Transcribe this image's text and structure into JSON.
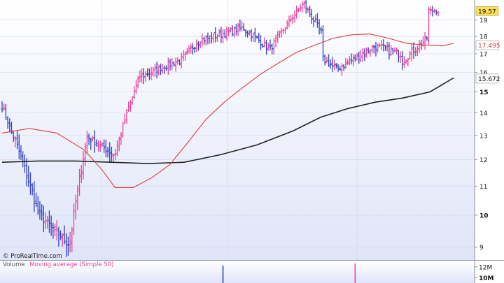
{
  "source_label": "© ProRealTime.com",
  "volume_panel": {
    "label_volume": "Volume",
    "label_ma": "Moving average (Simple 50)",
    "ticks": [
      {
        "label": "12M",
        "value": 12000000,
        "bold": false
      },
      {
        "label": "10M",
        "value": 10000000,
        "bold": true
      }
    ],
    "spike_bars": [
      {
        "index": 0,
        "value": 12200000
      },
      {
        "index": 0,
        "value": 12600000
      }
    ]
  },
  "colors": {
    "up": "#e8409b",
    "down": "#3040c0",
    "ma_short": "#e03c3c",
    "ma_long": "#222222",
    "grid": "#d0d6e6",
    "bg_top": "#ffffff",
    "bg_bottom": "#dfe5f8",
    "badge_price": "#ffe14d",
    "badge_ma_short": "#ffffff",
    "badge_ma_long": "#ffffff"
  },
  "chart_data": {
    "type": "ohlc",
    "scale": "log",
    "ylim": [
      8.75,
      20.2
    ],
    "y_ticks": [
      {
        "label": "9",
        "value": 9,
        "bold": false
      },
      {
        "label": "10",
        "value": 10,
        "bold": true
      },
      {
        "label": "11",
        "value": 11,
        "bold": false
      },
      {
        "label": "12",
        "value": 12,
        "bold": false
      },
      {
        "label": "13",
        "value": 13,
        "bold": false
      },
      {
        "label": "14",
        "value": 14,
        "bold": false
      },
      {
        "label": "15",
        "value": 15,
        "bold": true
      },
      {
        "label": "16",
        "value": 16,
        "bold": false
      },
      {
        "label": "17",
        "value": 17,
        "bold": false
      },
      {
        "label": "18",
        "value": 18,
        "bold": false
      },
      {
        "label": "19",
        "value": 19,
        "bold": false
      }
    ],
    "last_values": {
      "price": "19.57",
      "ma_short": "17.495",
      "ma_long": "15.672"
    },
    "segments": [
      {
        "bars": 20,
        "start": 14.3,
        "end": 10.1,
        "noise": 0.35
      },
      {
        "bars": 16,
        "start": 10.0,
        "end": 9.1,
        "noise": 0.25
      },
      {
        "bars": 10,
        "start": 9.2,
        "end": 12.9,
        "noise": 0.3
      },
      {
        "bars": 14,
        "start": 12.9,
        "end": 12.2,
        "noise": 0.3
      },
      {
        "bars": 14,
        "start": 12.3,
        "end": 15.8,
        "noise": 0.3
      },
      {
        "bars": 20,
        "start": 15.8,
        "end": 16.6,
        "noise": 0.35
      },
      {
        "bars": 12,
        "start": 16.6,
        "end": 17.8,
        "noise": 0.35
      },
      {
        "bars": 22,
        "start": 17.8,
        "end": 18.5,
        "noise": 0.4
      },
      {
        "bars": 14,
        "start": 18.5,
        "end": 17.3,
        "noise": 0.4
      },
      {
        "bars": 18,
        "start": 17.3,
        "end": 20.0,
        "noise": 0.35
      },
      {
        "bars": 10,
        "start": 20.0,
        "end": 18.2,
        "noise": 0.4
      },
      {
        "bars": 8,
        "start": 16.7,
        "end": 16.2,
        "noise": 0.4
      },
      {
        "bars": 20,
        "start": 16.2,
        "end": 17.4,
        "noise": 0.4
      },
      {
        "bars": 14,
        "start": 17.4,
        "end": 17.0,
        "noise": 0.45
      },
      {
        "bars": 14,
        "start": 16.6,
        "end": 17.9,
        "noise": 0.4
      },
      {
        "bars": 6,
        "start": 19.6,
        "end": 19.57,
        "noise": 0.3
      }
    ],
    "ma_short": [
      [
        0,
        13.1
      ],
      [
        15,
        13.3
      ],
      [
        30,
        13.1
      ],
      [
        45,
        12.4
      ],
      [
        55,
        11.6
      ],
      [
        62,
        10.95
      ],
      [
        72,
        10.95
      ],
      [
        82,
        11.3
      ],
      [
        92,
        11.8
      ],
      [
        102,
        12.7
      ],
      [
        112,
        13.7
      ],
      [
        122,
        14.5
      ],
      [
        132,
        15.2
      ],
      [
        142,
        15.9
      ],
      [
        152,
        16.5
      ],
      [
        162,
        17.1
      ],
      [
        172,
        17.5
      ],
      [
        182,
        17.9
      ],
      [
        192,
        18.1
      ],
      [
        202,
        18.15
      ],
      [
        212,
        17.9
      ],
      [
        222,
        17.6
      ],
      [
        232,
        17.5
      ],
      [
        242,
        17.45
      ],
      [
        248,
        17.6
      ]
    ],
    "ma_long": [
      [
        0,
        11.9
      ],
      [
        20,
        11.95
      ],
      [
        40,
        11.95
      ],
      [
        60,
        11.9
      ],
      [
        80,
        11.85
      ],
      [
        100,
        11.9
      ],
      [
        120,
        12.2
      ],
      [
        140,
        12.6
      ],
      [
        160,
        13.2
      ],
      [
        175,
        13.8
      ],
      [
        190,
        14.2
      ],
      [
        205,
        14.5
      ],
      [
        220,
        14.7
      ],
      [
        235,
        15.0
      ],
      [
        248,
        15.7
      ]
    ]
  }
}
